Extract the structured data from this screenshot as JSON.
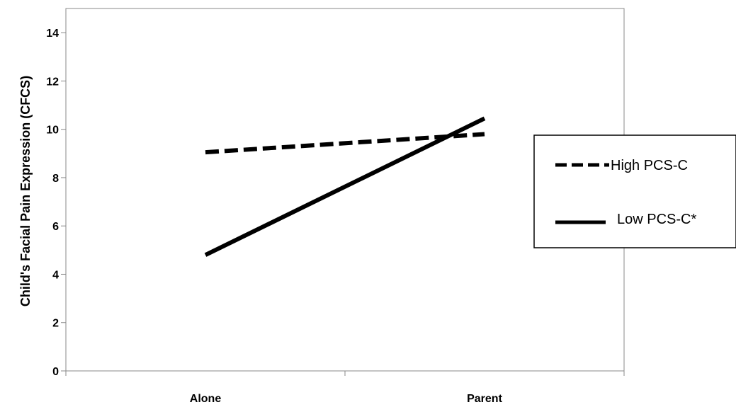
{
  "chart_data": {
    "type": "line",
    "title": "",
    "xlabel": "",
    "ylabel": "Child's Facial Pain Expression (CFCS)",
    "categories": [
      "Alone",
      "Parent"
    ],
    "ylim": [
      0,
      15
    ],
    "yticks": [
      0,
      2,
      4,
      6,
      8,
      10,
      12,
      14
    ],
    "grid": false,
    "legend_position": "right",
    "series": [
      {
        "name": "High PCS-C",
        "style": "dashed",
        "color": "#000000",
        "values": [
          9.05,
          9.8
        ]
      },
      {
        "name": "Low PCS-C*",
        "style": "solid",
        "color": "#000000",
        "values": [
          4.8,
          10.45
        ]
      }
    ]
  }
}
